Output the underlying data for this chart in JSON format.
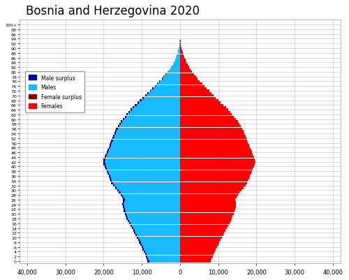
{
  "title": "Bosnia and Herzegovina 2020",
  "xlim": 42000,
  "xticks": [
    -40000,
    -30000,
    -20000,
    -10000,
    0,
    10000,
    20000,
    30000,
    40000
  ],
  "xtick_labels": [
    "40,000",
    "30,000",
    "20,000",
    "10,000",
    "0",
    "10,000",
    "20,000",
    "30,000",
    "40,000"
  ],
  "male_color": "#1ABAFF",
  "male_surplus_color": "#00008B",
  "female_color": "#FF0000",
  "female_surplus_color": "#8B0000",
  "background_color": "#ffffff",
  "grid_color": "#cccccc",
  "ages": [
    0,
    1,
    2,
    3,
    4,
    5,
    6,
    7,
    8,
    9,
    10,
    11,
    12,
    13,
    14,
    15,
    16,
    17,
    18,
    19,
    20,
    21,
    22,
    23,
    24,
    25,
    26,
    27,
    28,
    29,
    30,
    31,
    32,
    33,
    34,
    35,
    36,
    37,
    38,
    39,
    40,
    41,
    42,
    43,
    44,
    45,
    46,
    47,
    48,
    49,
    50,
    51,
    52,
    53,
    54,
    55,
    56,
    57,
    58,
    59,
    60,
    61,
    62,
    63,
    64,
    65,
    66,
    67,
    68,
    69,
    70,
    71,
    72,
    73,
    74,
    75,
    76,
    77,
    78,
    79,
    80,
    81,
    82,
    83,
    84,
    85,
    86,
    87,
    88,
    89,
    90,
    91,
    92,
    93,
    94,
    95,
    96,
    97,
    98,
    99,
    100
  ],
  "males": [
    8500,
    8700,
    9000,
    9200,
    9500,
    9800,
    10100,
    10400,
    10700,
    11000,
    11400,
    11700,
    12000,
    12300,
    12600,
    13000,
    13300,
    13700,
    14000,
    14200,
    14500,
    14700,
    14800,
    15000,
    15100,
    15000,
    14900,
    15200,
    15500,
    16000,
    16500,
    17000,
    17500,
    18000,
    18200,
    18500,
    18700,
    19000,
    19200,
    19500,
    19800,
    20000,
    20100,
    20000,
    19800,
    19500,
    19200,
    19000,
    18700,
    18500,
    18200,
    18000,
    17700,
    17500,
    17200,
    17000,
    16700,
    16300,
    15900,
    15500,
    15000,
    14500,
    14000,
    13500,
    13000,
    12400,
    11800,
    11100,
    10500,
    9800,
    9200,
    8500,
    7900,
    7300,
    6600,
    6000,
    5400,
    4800,
    4300,
    3800,
    3200,
    2700,
    2300,
    1900,
    1600,
    1300,
    1050,
    820,
    620,
    460,
    320,
    210,
    140,
    80,
    50,
    30,
    15,
    8,
    4,
    2,
    1
  ],
  "females": [
    8100,
    8300,
    8600,
    8800,
    9100,
    9400,
    9700,
    10000,
    10300,
    10600,
    11000,
    11300,
    11600,
    11900,
    12200,
    12600,
    12900,
    13300,
    13600,
    13800,
    14100,
    14300,
    14400,
    14600,
    14700,
    14600,
    14500,
    14800,
    15100,
    15600,
    16100,
    16600,
    17100,
    17600,
    17800,
    18100,
    18300,
    18600,
    18800,
    19100,
    19400,
    19600,
    19700,
    19600,
    19400,
    19100,
    18800,
    18600,
    18300,
    18100,
    17800,
    17600,
    17300,
    17100,
    16800,
    16600,
    16300,
    15900,
    15500,
    15100,
    14600,
    14100,
    13600,
    13100,
    12600,
    12000,
    11400,
    10700,
    10100,
    9400,
    8800,
    8200,
    7600,
    7000,
    6400,
    5800,
    5200,
    4600,
    4200,
    3700,
    3200,
    2700,
    2400,
    2000,
    1700,
    1400,
    1150,
    920,
    720,
    550,
    400,
    280,
    190,
    110,
    70,
    40,
    20,
    11,
    5,
    3,
    2
  ],
  "legend_entries": [
    "Male surplus",
    "Males",
    "Female surplus",
    "Females"
  ],
  "legend_colors": [
    "#00008B",
    "#1ABAFF",
    "#8B0000",
    "#FF0000"
  ]
}
